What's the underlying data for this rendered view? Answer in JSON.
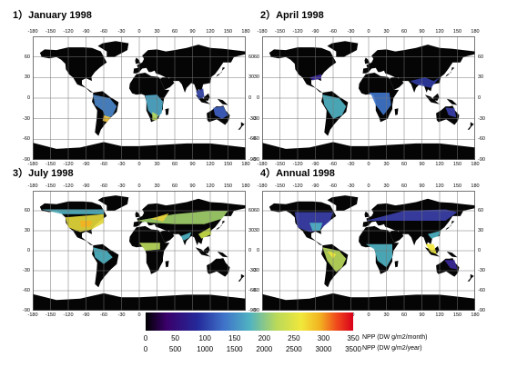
{
  "panels": [
    {
      "title": "1）January 1998"
    },
    {
      "title": "2）April 1998"
    },
    {
      "title": "3）July 1998"
    },
    {
      "title": "4）Annual 1998"
    }
  ],
  "axes": {
    "lon_ticks": [
      "-180",
      "-150",
      "-120",
      "-90",
      "-60",
      "-30",
      "0",
      "30",
      "60",
      "90",
      "120",
      "150",
      "180"
    ],
    "lat_ticks": [
      "60",
      "30",
      "0",
      "-30",
      "-60",
      "-90"
    ]
  },
  "colorbar": {
    "monthly_ticks": [
      "0",
      "50",
      "100",
      "150",
      "200",
      "250",
      "300",
      "350"
    ],
    "annual_ticks": [
      "0",
      "500",
      "1000",
      "1500",
      "2000",
      "2500",
      "3000",
      "3500"
    ],
    "monthly_unit": "NPP (DW g/m2/month)",
    "annual_unit": "NPP (DW g/m2/year)",
    "colors": [
      "#000000",
      "#3a006a",
      "#24299a",
      "#3f74c9",
      "#4fb2c2",
      "#b9d95a",
      "#f1e73a",
      "#f2b221",
      "#f04a1c",
      "#d9001b"
    ]
  }
}
